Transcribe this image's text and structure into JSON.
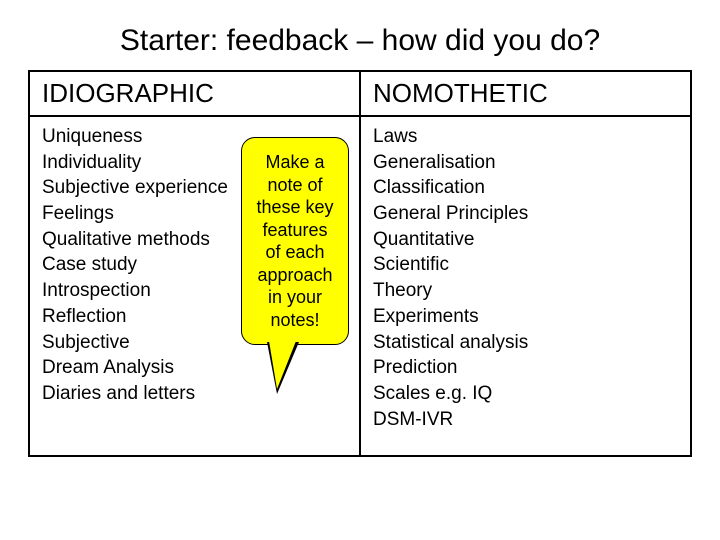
{
  "title": "Starter: feedback – how did you do?",
  "colors": {
    "background": "#ffffff",
    "border": "#000000",
    "text": "#000000",
    "callout_fill": "#ffff00",
    "callout_border": "#000000"
  },
  "typography": {
    "title_fontsize": 30,
    "header_fontsize": 26,
    "body_fontsize": 19,
    "callout_fontsize": 18,
    "font_family": "Arial"
  },
  "table": {
    "columns": [
      {
        "header": "IDIOGRAPHIC"
      },
      {
        "header": "NOMOTHETIC"
      }
    ],
    "left_items": [
      "Uniqueness",
      "Individuality",
      "Subjective experience",
      "Feelings",
      "Qualitative methods",
      "Case study",
      "Introspection",
      "Reflection",
      "Subjective",
      "Dream Analysis",
      "Diaries and letters"
    ],
    "right_items": [
      "Laws",
      "Generalisation",
      "Classification",
      "General Principles",
      "Quantitative",
      "Scientific",
      "Theory",
      "Experiments",
      "Statistical analysis",
      "Prediction",
      "Scales e.g. IQ",
      "DSM-IVR"
    ]
  },
  "callout": {
    "lines": [
      "Make a",
      "note of",
      "these key",
      "features",
      "of each",
      "approach",
      "in your",
      "notes!"
    ]
  }
}
